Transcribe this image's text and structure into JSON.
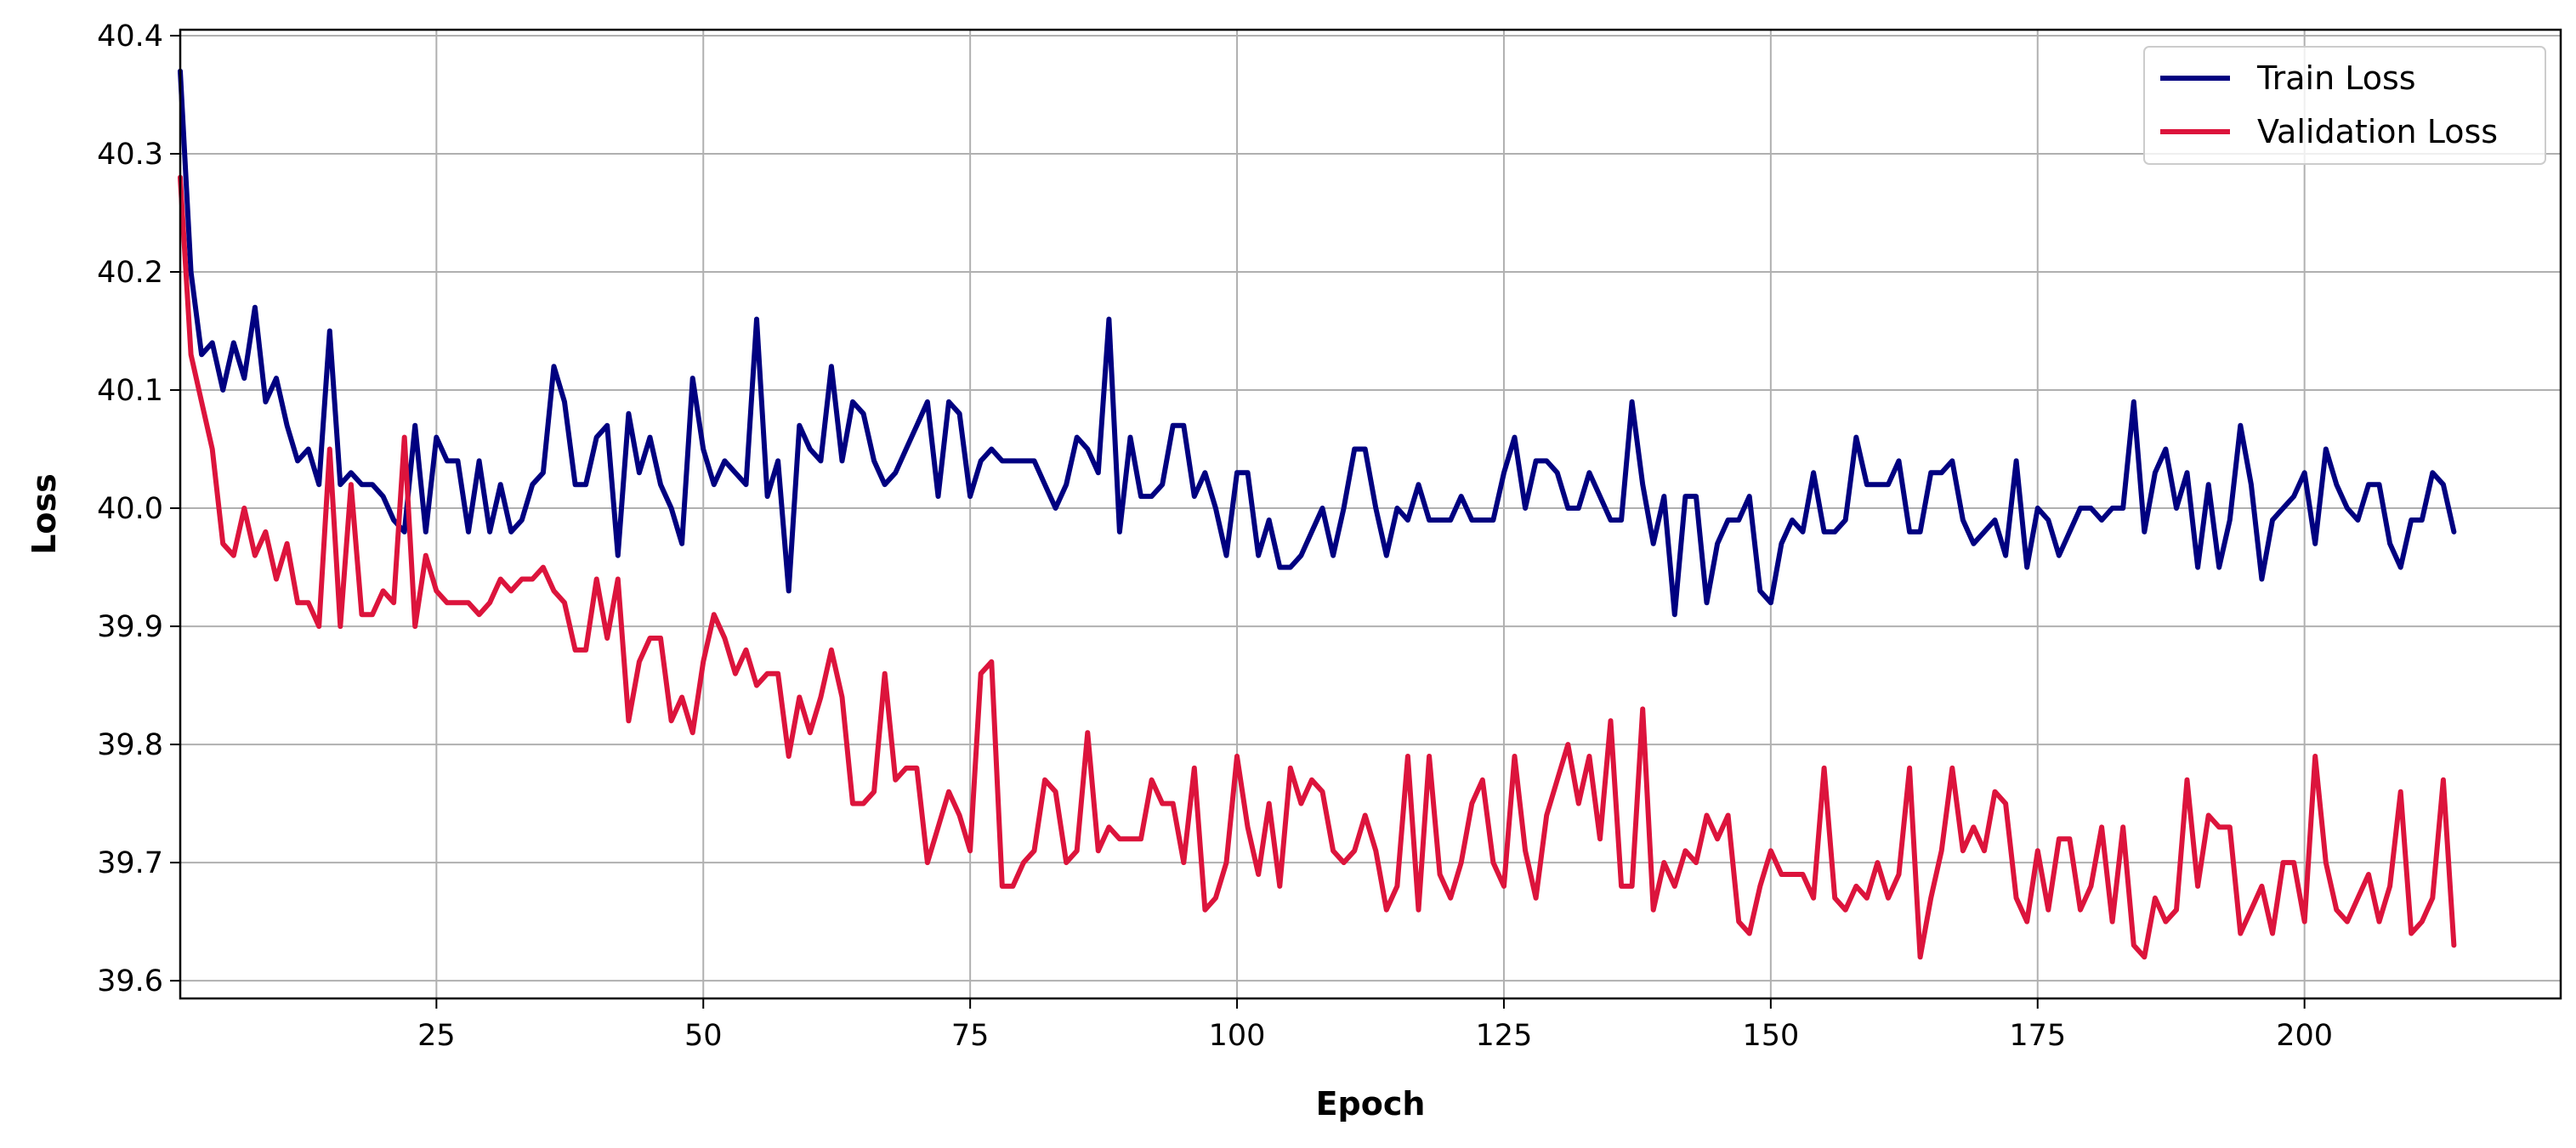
{
  "chart_data": {
    "type": "line",
    "title": "",
    "xlabel": "Epoch",
    "ylabel": "Loss",
    "xlim": [
      1,
      224
    ],
    "ylim": [
      39.585,
      40.405
    ],
    "x_ticks": [
      25,
      50,
      75,
      100,
      125,
      150,
      175,
      200
    ],
    "y_ticks": [
      39.6,
      39.7,
      39.8,
      39.9,
      40.0,
      40.1,
      40.2,
      40.3,
      40.4
    ],
    "y_tick_labels": [
      "39.6",
      "39.7",
      "39.8",
      "39.9",
      "40.0",
      "40.1",
      "40.2",
      "40.3",
      "40.4"
    ],
    "grid": true,
    "legend_position": "top-right",
    "x_start": 1,
    "series": [
      {
        "name": "Train Loss",
        "color": "#000080",
        "values": [
          40.37,
          40.2,
          40.13,
          40.14,
          40.1,
          40.14,
          40.11,
          40.17,
          40.09,
          40.11,
          40.07,
          40.04,
          40.05,
          40.02,
          40.15,
          40.02,
          40.03,
          40.02,
          40.02,
          40.01,
          39.99,
          39.98,
          40.07,
          39.98,
          40.06,
          40.04,
          40.04,
          39.98,
          40.04,
          39.98,
          40.02,
          39.98,
          39.99,
          40.02,
          40.03,
          40.12,
          40.09,
          40.02,
          40.02,
          40.06,
          40.07,
          39.96,
          40.08,
          40.03,
          40.06,
          40.02,
          40.0,
          39.97,
          40.11,
          40.05,
          40.02,
          40.04,
          40.03,
          40.02,
          40.16,
          40.01,
          40.04,
          39.93,
          40.07,
          40.05,
          40.04,
          40.12,
          40.04,
          40.09,
          40.08,
          40.04,
          40.02,
          40.03,
          40.05,
          40.07,
          40.09,
          40.01,
          40.09,
          40.08,
          40.01,
          40.04,
          40.05,
          40.04,
          40.04,
          40.04,
          40.04,
          40.02,
          40.0,
          40.02,
          40.06,
          40.05,
          40.03,
          40.16,
          39.98,
          40.06,
          40.01,
          40.01,
          40.02,
          40.07,
          40.07,
          40.01,
          40.03,
          40.0,
          39.96,
          40.03,
          40.03,
          39.96,
          39.99,
          39.95,
          39.95,
          39.96,
          39.98,
          40.0,
          39.96,
          40.0,
          40.05,
          40.05,
          40.0,
          39.96,
          40.0,
          39.99,
          40.02,
          39.99,
          39.99,
          39.99,
          40.01,
          39.99,
          39.99,
          39.99,
          40.03,
          40.06,
          40.0,
          40.04,
          40.04,
          40.03,
          40.0,
          40.0,
          40.03,
          40.01,
          39.99,
          39.99,
          40.09,
          40.02,
          39.97,
          40.01,
          39.91,
          40.01,
          40.01,
          39.92,
          39.97,
          39.99,
          39.99,
          40.01,
          39.93,
          39.92,
          39.97,
          39.99,
          39.98,
          40.03,
          39.98,
          39.98,
          39.99,
          40.06,
          40.02,
          40.02,
          40.02,
          40.04,
          39.98,
          39.98,
          40.03,
          40.03,
          40.04,
          39.99,
          39.97,
          39.98,
          39.99,
          39.96,
          40.04,
          39.95,
          40.0,
          39.99,
          39.96,
          39.98,
          40.0,
          40.0,
          39.99,
          40.0,
          40.0,
          40.09,
          39.98,
          40.03,
          40.05,
          40.0,
          40.03,
          39.95,
          40.02,
          39.95,
          39.99,
          40.07,
          40.02,
          39.94,
          39.99,
          40.0,
          40.01,
          40.03,
          39.97,
          40.05,
          40.02,
          40.0,
          39.99,
          40.02,
          40.02,
          39.97,
          39.95,
          39.99,
          39.99,
          40.03,
          40.02,
          39.98
        ]
      },
      {
        "name": "Validation Loss",
        "color": "#DC143C",
        "values": [
          40.28,
          40.13,
          40.09,
          40.05,
          39.97,
          39.96,
          40.0,
          39.96,
          39.98,
          39.94,
          39.97,
          39.92,
          39.92,
          39.9,
          40.05,
          39.9,
          40.02,
          39.91,
          39.91,
          39.93,
          39.92,
          40.06,
          39.9,
          39.96,
          39.93,
          39.92,
          39.92,
          39.92,
          39.91,
          39.92,
          39.94,
          39.93,
          39.94,
          39.94,
          39.95,
          39.93,
          39.92,
          39.88,
          39.88,
          39.94,
          39.89,
          39.94,
          39.82,
          39.87,
          39.89,
          39.89,
          39.82,
          39.84,
          39.81,
          39.87,
          39.91,
          39.89,
          39.86,
          39.88,
          39.85,
          39.86,
          39.86,
          39.79,
          39.84,
          39.81,
          39.84,
          39.88,
          39.84,
          39.75,
          39.75,
          39.76,
          39.86,
          39.77,
          39.78,
          39.78,
          39.7,
          39.73,
          39.76,
          39.74,
          39.71,
          39.86,
          39.87,
          39.68,
          39.68,
          39.7,
          39.71,
          39.77,
          39.76,
          39.7,
          39.71,
          39.81,
          39.71,
          39.73,
          39.72,
          39.72,
          39.72,
          39.77,
          39.75,
          39.75,
          39.7,
          39.78,
          39.66,
          39.67,
          39.7,
          39.79,
          39.73,
          39.69,
          39.75,
          39.68,
          39.78,
          39.75,
          39.77,
          39.76,
          39.71,
          39.7,
          39.71,
          39.74,
          39.71,
          39.66,
          39.68,
          39.79,
          39.66,
          39.79,
          39.69,
          39.67,
          39.7,
          39.75,
          39.77,
          39.7,
          39.68,
          39.79,
          39.71,
          39.67,
          39.74,
          39.77,
          39.8,
          39.75,
          39.79,
          39.72,
          39.82,
          39.68,
          39.68,
          39.83,
          39.66,
          39.7,
          39.68,
          39.71,
          39.7,
          39.74,
          39.72,
          39.74,
          39.65,
          39.64,
          39.68,
          39.71,
          39.69,
          39.69,
          39.69,
          39.67,
          39.78,
          39.67,
          39.66,
          39.68,
          39.67,
          39.7,
          39.67,
          39.69,
          39.78,
          39.62,
          39.67,
          39.71,
          39.78,
          39.71,
          39.73,
          39.71,
          39.76,
          39.75,
          39.67,
          39.65,
          39.71,
          39.66,
          39.72,
          39.72,
          39.66,
          39.68,
          39.73,
          39.65,
          39.73,
          39.63,
          39.62,
          39.67,
          39.65,
          39.66,
          39.77,
          39.68,
          39.74,
          39.73,
          39.73,
          39.64,
          39.66,
          39.68,
          39.64,
          39.7,
          39.7,
          39.65,
          39.79,
          39.7,
          39.66,
          39.65,
          39.67,
          39.69,
          39.65,
          39.68,
          39.76,
          39.64,
          39.65,
          39.67,
          39.77,
          39.63
        ]
      }
    ]
  }
}
